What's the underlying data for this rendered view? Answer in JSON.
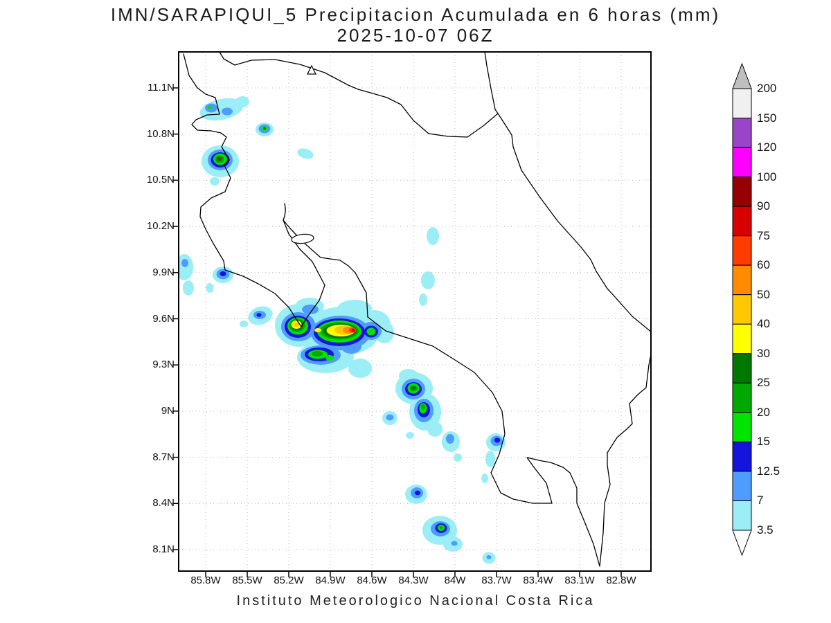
{
  "title": {
    "line1": "IMN/SARAPIQUI_5 Precipitacion Acumulada en 6 horas (mm)",
    "line2": "2025-10-07 06Z"
  },
  "footer": "Instituto Meteorologico Nacional Costa Rica",
  "axes": {
    "lat_ticks": [
      "11.1N",
      "10.8N",
      "10.5N",
      "10.2N",
      "9.9N",
      "9.6N",
      "9.3N",
      "9N",
      "8.7N",
      "8.4N",
      "8.1N"
    ],
    "lon_ticks": [
      "85.8W",
      "85.5W",
      "85.2W",
      "84.9W",
      "84.6W",
      "84.3W",
      "84W",
      "83.7W",
      "83.4W",
      "83.1W",
      "82.8W"
    ]
  },
  "legend": {
    "levels": [
      "200",
      "150",
      "120",
      "100",
      "90",
      "75",
      "60",
      "50",
      "40",
      "30",
      "25",
      "20",
      "15",
      "12.5",
      "7",
      "3.5"
    ],
    "colors": [
      "#f0f0f0",
      "#9a44c8",
      "#ff00ff",
      "#960000",
      "#d80000",
      "#ff3c00",
      "#ff8c00",
      "#ffc800",
      "#ffff00",
      "#007800",
      "#00a800",
      "#00e400",
      "#1414dc",
      "#4f9cff",
      "#9beef5"
    ],
    "arrow_top_color": "#bfbfbf",
    "arrow_bottom_color": "#ffffff"
  },
  "chart_data": {
    "type": "heatmap",
    "title": "IMN/SARAPIQUI_5 Precipitacion Acumulada en 6 horas (mm)",
    "valid_time": "2025-10-07 06Z",
    "units": "mm",
    "region": "Costa Rica",
    "lat_range_n": [
      8.1,
      11.1
    ],
    "lon_range_w": [
      85.8,
      82.8
    ],
    "grid": "dotted",
    "legend_position": "right",
    "scale_levels_mm": [
      3.5,
      7,
      12.5,
      15,
      20,
      25,
      30,
      40,
      50,
      60,
      75,
      90,
      100,
      120,
      150,
      200
    ],
    "precipitation_cells": [
      {
        "lat": 10.95,
        "lon_w": 85.68,
        "peak_mm": 12
      },
      {
        "lat": 10.82,
        "lon_w": 85.38,
        "peak_mm": 25
      },
      {
        "lat": 10.63,
        "lon_w": 85.7,
        "peak_mm": 30
      },
      {
        "lat": 10.67,
        "lon_w": 85.08,
        "peak_mm": 5
      },
      {
        "lat": 9.95,
        "lon_w": 85.85,
        "peak_mm": 5
      },
      {
        "lat": 9.9,
        "lon_w": 85.68,
        "peak_mm": 14
      },
      {
        "lat": 9.62,
        "lon_w": 85.41,
        "peak_mm": 10
      },
      {
        "lat": 9.56,
        "lon_w": 85.15,
        "peak_mm": 45
      },
      {
        "lat": 9.53,
        "lon_w": 84.74,
        "peak_mm": 80
      },
      {
        "lat": 9.51,
        "lon_w": 84.61,
        "peak_mm": 18
      },
      {
        "lat": 9.36,
        "lon_w": 84.99,
        "peak_mm": 20
      },
      {
        "lat": 9.14,
        "lon_w": 84.3,
        "peak_mm": 25
      },
      {
        "lat": 9.01,
        "lon_w": 84.23,
        "peak_mm": 25
      },
      {
        "lat": 8.96,
        "lon_w": 84.47,
        "peak_mm": 10
      },
      {
        "lat": 9.85,
        "lon_w": 84.2,
        "peak_mm": 4
      },
      {
        "lat": 10.14,
        "lon_w": 84.16,
        "peak_mm": 4
      },
      {
        "lat": 8.8,
        "lon_w": 84.03,
        "peak_mm": 10
      },
      {
        "lat": 8.8,
        "lon_w": 83.7,
        "peak_mm": 14
      },
      {
        "lat": 8.46,
        "lon_w": 84.28,
        "peak_mm": 14
      },
      {
        "lat": 8.23,
        "lon_w": 84.12,
        "peak_mm": 22
      },
      {
        "lat": 8.05,
        "lon_w": 83.76,
        "peak_mm": 4
      }
    ]
  }
}
